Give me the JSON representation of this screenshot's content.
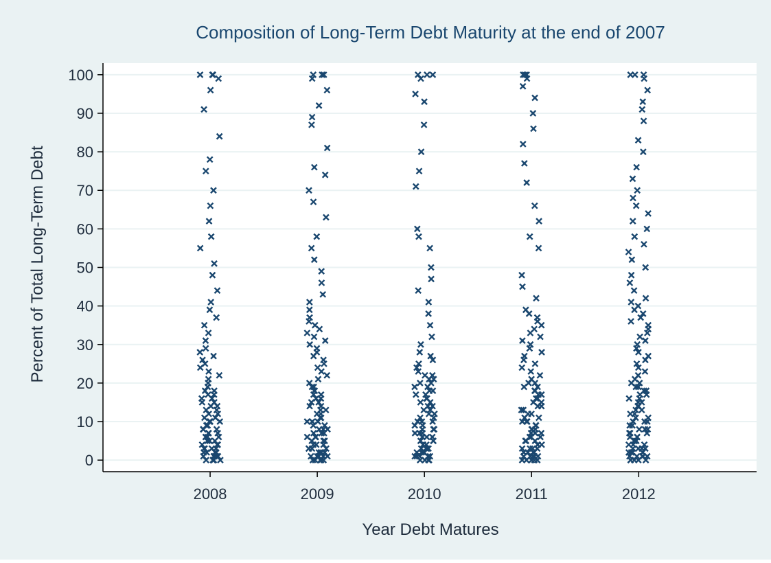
{
  "chart_data": {
    "type": "scatter",
    "title": "Composition of Long-Term Debt Maturity at the end of 2007",
    "xlabel": "Year Debt Matures",
    "ylabel": "Percent of Total Long-Term Debt",
    "x_ticks": [
      "2008",
      "2009",
      "2010",
      "2011",
      "2012"
    ],
    "y_ticks": [
      "0",
      "10",
      "20",
      "30",
      "40",
      "50",
      "60",
      "70",
      "80",
      "90",
      "100"
    ],
    "xlim": [
      2007.0,
      2013.1
    ],
    "ylim": [
      -3,
      103
    ],
    "grid": true,
    "marker": "x",
    "colors": {
      "outer_background": "#eaf2f3",
      "plot_background": "#ffffff",
      "grid": "#eaf2f3",
      "marker": "#1a476f",
      "text": "#1f2d3d",
      "title": "#1a476f",
      "axis": "#000000"
    },
    "series": [
      {
        "year": 2008,
        "y": [
          0,
          0,
          0,
          0,
          0,
          1,
          1,
          1,
          1,
          1,
          2,
          2,
          2,
          2,
          3,
          3,
          3,
          3,
          4,
          4,
          4,
          5,
          5,
          5,
          6,
          6,
          6,
          7,
          7,
          7,
          8,
          8,
          8,
          9,
          9,
          10,
          10,
          10,
          11,
          11,
          12,
          12,
          13,
          13,
          14,
          14,
          15,
          15,
          16,
          16,
          17,
          17,
          18,
          18,
          19,
          20,
          21,
          22,
          23,
          24,
          25,
          26,
          27,
          28,
          29,
          31,
          33,
          35,
          37,
          39,
          41,
          44,
          48,
          51,
          55,
          58,
          62,
          66,
          70,
          75,
          78,
          84,
          91,
          96,
          99,
          100,
          100,
          100
        ]
      },
      {
        "year": 2009,
        "y": [
          0,
          0,
          0,
          0,
          0,
          1,
          1,
          1,
          1,
          1,
          2,
          2,
          2,
          2,
          3,
          3,
          3,
          3,
          4,
          4,
          4,
          5,
          5,
          5,
          6,
          6,
          6,
          7,
          7,
          7,
          8,
          8,
          8,
          9,
          9,
          10,
          10,
          10,
          11,
          11,
          12,
          12,
          13,
          13,
          14,
          14,
          15,
          15,
          16,
          16,
          17,
          17,
          18,
          18,
          19,
          19,
          20,
          21,
          22,
          23,
          24,
          25,
          26,
          27,
          28,
          29,
          30,
          31,
          32,
          33,
          34,
          35,
          36,
          37,
          39,
          41,
          43,
          46,
          49,
          52,
          55,
          58,
          63,
          67,
          70,
          74,
          76,
          81,
          87,
          89,
          92,
          96,
          99,
          100,
          100,
          100
        ]
      },
      {
        "year": 2010,
        "y": [
          0,
          0,
          0,
          0,
          0,
          1,
          1,
          1,
          1,
          1,
          2,
          2,
          2,
          2,
          3,
          3,
          3,
          3,
          4,
          4,
          4,
          5,
          5,
          5,
          6,
          6,
          6,
          7,
          7,
          7,
          8,
          8,
          8,
          9,
          9,
          10,
          10,
          10,
          11,
          11,
          12,
          12,
          13,
          13,
          14,
          14,
          15,
          15,
          16,
          16,
          17,
          17,
          18,
          18,
          19,
          19,
          20,
          20,
          21,
          21,
          22,
          22,
          23,
          24,
          25,
          26,
          27,
          28,
          30,
          32,
          35,
          38,
          41,
          44,
          47,
          50,
          55,
          58,
          60,
          71,
          75,
          80,
          87,
          93,
          95,
          99,
          100,
          100,
          100
        ]
      },
      {
        "year": 2011,
        "y": [
          0,
          0,
          0,
          0,
          0,
          1,
          1,
          1,
          1,
          1,
          2,
          2,
          2,
          2,
          3,
          3,
          3,
          3,
          4,
          4,
          4,
          5,
          5,
          5,
          6,
          6,
          6,
          7,
          7,
          7,
          8,
          8,
          8,
          9,
          9,
          10,
          10,
          10,
          11,
          11,
          12,
          12,
          13,
          13,
          14,
          14,
          15,
          15,
          16,
          16,
          17,
          17,
          18,
          18,
          19,
          19,
          20,
          20,
          21,
          22,
          23,
          24,
          25,
          26,
          27,
          28,
          29,
          30,
          31,
          32,
          33,
          34,
          35,
          36,
          37,
          38,
          39,
          42,
          45,
          48,
          55,
          58,
          62,
          66,
          72,
          77,
          82,
          86,
          90,
          94,
          97,
          99,
          100,
          100,
          100
        ]
      },
      {
        "year": 2012,
        "y": [
          0,
          0,
          0,
          0,
          0,
          1,
          1,
          1,
          1,
          1,
          2,
          2,
          2,
          2,
          3,
          3,
          3,
          3,
          4,
          4,
          4,
          5,
          5,
          5,
          6,
          6,
          6,
          7,
          7,
          7,
          8,
          8,
          8,
          9,
          9,
          10,
          10,
          10,
          11,
          11,
          12,
          12,
          13,
          13,
          14,
          14,
          15,
          15,
          16,
          16,
          17,
          17,
          18,
          18,
          19,
          19,
          20,
          20,
          21,
          22,
          23,
          24,
          25,
          26,
          27,
          28,
          29,
          30,
          31,
          32,
          33,
          34,
          35,
          36,
          37,
          38,
          39,
          40,
          41,
          42,
          44,
          46,
          48,
          50,
          52,
          54,
          56,
          58,
          60,
          62,
          64,
          66,
          68,
          70,
          73,
          76,
          80,
          83,
          88,
          91,
          93,
          96,
          99,
          100,
          100,
          100
        ]
      }
    ]
  }
}
